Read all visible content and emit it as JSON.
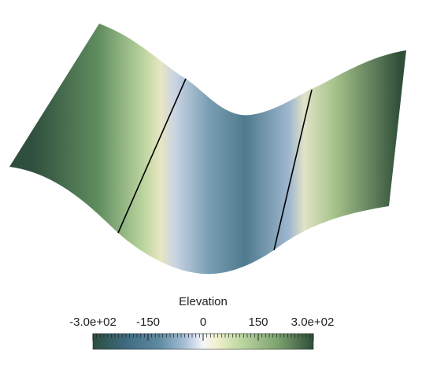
{
  "legend": {
    "title": "Elevation",
    "ticks": [
      {
        "label": "-3.0e+02",
        "value": -300
      },
      {
        "label": "-150",
        "value": -150
      },
      {
        "label": "0",
        "value": 0
      },
      {
        "label": "150",
        "value": 150
      },
      {
        "label": "3.0e+02",
        "value": 300
      }
    ],
    "range": [
      -300,
      300
    ]
  },
  "colormap": {
    "stops": [
      {
        "offset": 0.0,
        "color": "#2b4e3c"
      },
      {
        "offset": 0.15,
        "color": "#3f6b83"
      },
      {
        "offset": 0.3,
        "color": "#5e8aa1"
      },
      {
        "offset": 0.42,
        "color": "#a9c1d8"
      },
      {
        "offset": 0.5,
        "color": "#f5f5fb"
      },
      {
        "offset": 0.56,
        "color": "#f0f1cd"
      },
      {
        "offset": 0.68,
        "color": "#b9d49e"
      },
      {
        "offset": 0.84,
        "color": "#7aa26f"
      },
      {
        "offset": 1.0,
        "color": "#2f4e38"
      }
    ]
  },
  "surface": {
    "contour_values": [
      0
    ]
  }
}
